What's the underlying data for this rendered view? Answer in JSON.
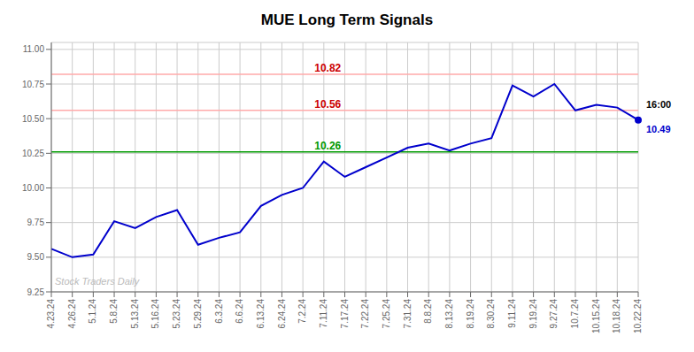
{
  "chart_data": {
    "type": "line",
    "title": "MUE Long Term Signals",
    "categories": [
      "4.23.24",
      "4.26.24",
      "5.1.24",
      "5.8.24",
      "5.13.24",
      "5.16.24",
      "5.23.24",
      "5.29.24",
      "6.3.24",
      "6.6.24",
      "6.13.24",
      "6.24.24",
      "7.2.24",
      "7.11.24",
      "7.17.24",
      "7.22.24",
      "7.25.24",
      "7.31.24",
      "8.8.24",
      "8.13.24",
      "8.19.24",
      "8.30.24",
      "9.11.24",
      "9.19.24",
      "9.27.24",
      "10.7.24",
      "10.15.24",
      "10.18.24",
      "10.22.24"
    ],
    "values": [
      9.56,
      9.5,
      9.52,
      9.76,
      9.71,
      9.79,
      9.84,
      9.59,
      9.64,
      9.68,
      9.87,
      9.95,
      10.0,
      10.19,
      10.08,
      10.15,
      10.22,
      10.29,
      10.32,
      10.27,
      10.32,
      10.36,
      10.74,
      10.66,
      10.75,
      10.56,
      10.6,
      10.58,
      10.49
    ],
    "color": "#0000cc",
    "ylim": [
      9.25,
      11.05
    ],
    "yticks": [
      9.25,
      {
        "value": 9.5,
        "label": "9.50"
      },
      9.75,
      {
        "value": 10.0,
        "label": "10.00"
      },
      10.25,
      {
        "value": 10.5,
        "label": "10.50"
      },
      10.75,
      {
        "value": 11.0,
        "label": "11.00"
      }
    ],
    "grid": true,
    "hlines": [
      {
        "value": 10.82,
        "label": "10.82",
        "color": "#ffaaaa",
        "label_color": "#cc0000"
      },
      {
        "value": 10.56,
        "label": "10.56",
        "color": "#ffaaaa",
        "label_color": "#cc0000"
      },
      {
        "value": 10.26,
        "label": "10.26",
        "color": "#009900",
        "label_color": "#009900"
      }
    ],
    "last_point": {
      "label": "16:00",
      "value_label": "10.49",
      "marker": "circle"
    },
    "watermark": "Stock Traders Daily"
  }
}
